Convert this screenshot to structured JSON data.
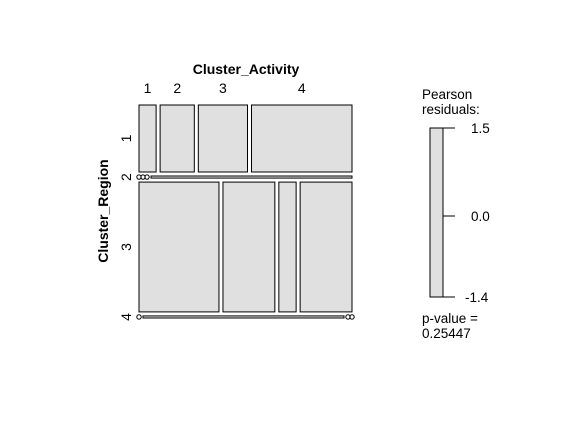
{
  "chart_data": {
    "type": "mosaic",
    "xlabel": "Cluster_Activity",
    "ylabel": "Cluster_Region",
    "activity_levels": [
      "1",
      "2",
      "3",
      "4"
    ],
    "region_levels": [
      "1",
      "2",
      "3",
      "4"
    ],
    "region_proportions": [
      0.32,
      0.01,
      0.62,
      0.01
    ],
    "activity_proportions_by_region": [
      [
        0.08,
        0.16,
        0.23,
        0.47
      ],
      [
        0.0,
        0.0,
        0.0,
        1.0
      ],
      [
        0.37,
        0.24,
        0.08,
        0.24
      ],
      [
        0.0,
        1.0,
        0.0,
        0.0
      ]
    ],
    "legend": {
      "title_line1": "Pearson",
      "title_line2": "residuals:",
      "max_label": "1.5",
      "mid_label": "0.0",
      "min_label": "-1.4",
      "range": [
        -1.4,
        1.5
      ]
    },
    "pvalue_line1": "p-value =",
    "pvalue_line2": "0.25447",
    "tile_fill": "#e0e0e0",
    "tile_border": "#000000"
  }
}
